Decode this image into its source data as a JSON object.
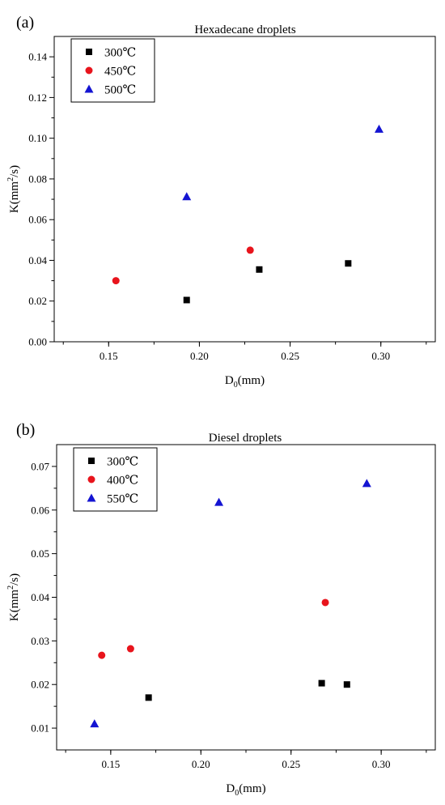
{
  "chart_data": [
    {
      "type": "scatter",
      "panel_label": "(a)",
      "title": "Hexadecane droplets",
      "xlabel_main": "D",
      "xlabel_sub": "0",
      "xlabel_unit": "(mm)",
      "ylabel_main": "K(mm",
      "ylabel_sup": "2",
      "ylabel_unit": "/s)",
      "xlim": [
        0.12,
        0.33
      ],
      "ylim": [
        0.0,
        0.15
      ],
      "xticks": [
        "0.15",
        "0.20",
        "0.25",
        "0.30"
      ],
      "xtick_values": [
        0.15,
        0.2,
        0.25,
        0.3
      ],
      "yticks": [
        "0.00",
        "0.02",
        "0.04",
        "0.06",
        "0.08",
        "0.10",
        "0.12",
        "0.14"
      ],
      "ytick_values": [
        0.0,
        0.02,
        0.04,
        0.06,
        0.08,
        0.1,
        0.12,
        0.14
      ],
      "legend_position": "top-left",
      "series": [
        {
          "name": "300℃",
          "marker": "square",
          "color": "#000000",
          "points": [
            [
              0.193,
              0.0205
            ],
            [
              0.233,
              0.0355
            ],
            [
              0.282,
              0.0385
            ]
          ]
        },
        {
          "name": "450℃",
          "marker": "circle",
          "color": "#e8141c",
          "points": [
            [
              0.154,
              0.03
            ],
            [
              0.228,
              0.045
            ]
          ]
        },
        {
          "name": "500℃",
          "marker": "triangle",
          "color": "#1414d2",
          "points": [
            [
              0.193,
              0.0713
            ],
            [
              0.299,
              0.1045
            ]
          ]
        }
      ]
    },
    {
      "type": "scatter",
      "panel_label": "(b)",
      "title": "Diesel droplets",
      "xlabel_main": "D",
      "xlabel_sub": "0",
      "xlabel_unit": "(mm)",
      "ylabel_main": "K(mm",
      "ylabel_sup": "2",
      "ylabel_unit": "/s)",
      "xlim": [
        0.12,
        0.33
      ],
      "ylim": [
        0.005,
        0.075
      ],
      "xticks": [
        "0.15",
        "0.20",
        "0.25",
        "0.30"
      ],
      "xtick_values": [
        0.15,
        0.2,
        0.25,
        0.3
      ],
      "yticks": [
        "0.01",
        "0.02",
        "0.03",
        "0.04",
        "0.05",
        "0.06",
        "0.07"
      ],
      "ytick_values": [
        0.01,
        0.02,
        0.03,
        0.04,
        0.05,
        0.06,
        0.07
      ],
      "legend_position": "top-left",
      "series": [
        {
          "name": "300℃",
          "marker": "square",
          "color": "#000000",
          "points": [
            [
              0.171,
              0.017
            ],
            [
              0.267,
              0.0203
            ],
            [
              0.281,
              0.02
            ]
          ]
        },
        {
          "name": "400℃",
          "marker": "circle",
          "color": "#e8141c",
          "points": [
            [
              0.145,
              0.0267
            ],
            [
              0.161,
              0.0282
            ],
            [
              0.269,
              0.0388
            ]
          ]
        },
        {
          "name": "550℃",
          "marker": "triangle",
          "color": "#1414d2",
          "points": [
            [
              0.141,
              0.011
            ],
            [
              0.21,
              0.0618
            ],
            [
              0.292,
              0.0661
            ]
          ]
        }
      ]
    }
  ]
}
